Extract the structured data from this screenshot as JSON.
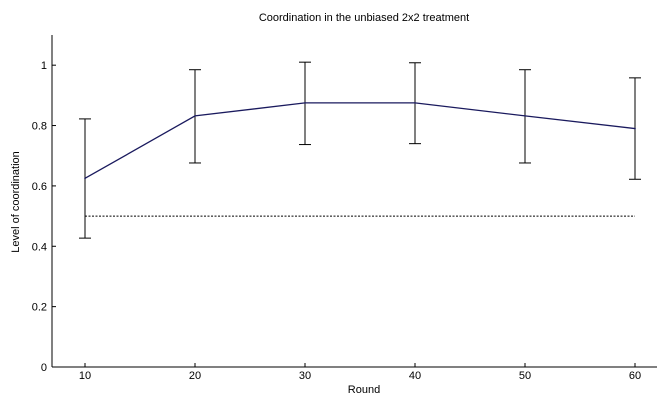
{
  "chart_data": {
    "type": "line",
    "title": "Coordination in the unbiased 2x2 treatment",
    "xlabel": "Round",
    "ylabel": "Level of coordination",
    "x": [
      10,
      20,
      30,
      40,
      50,
      60
    ],
    "series": [
      {
        "values": [
          0.625,
          0.832,
          0.875,
          0.875,
          0.832,
          0.79
        ],
        "error_low": [
          0.427,
          0.676,
          0.737,
          0.74,
          0.676,
          0.622
        ],
        "error_high": [
          0.822,
          0.985,
          1.01,
          1.008,
          0.985,
          0.958
        ]
      }
    ],
    "reference_line": {
      "y": 0.5,
      "style": "dotted"
    },
    "xlim": [
      7,
      62
    ],
    "ylim": [
      0,
      1.1
    ],
    "x_ticks": [
      "10",
      "20",
      "30",
      "40",
      "50",
      "60"
    ],
    "y_ticks": [
      "0",
      "0.2",
      "0.4",
      "0.6",
      "0.8",
      "1"
    ],
    "line_color": "#1a1a5e",
    "grid": false
  }
}
